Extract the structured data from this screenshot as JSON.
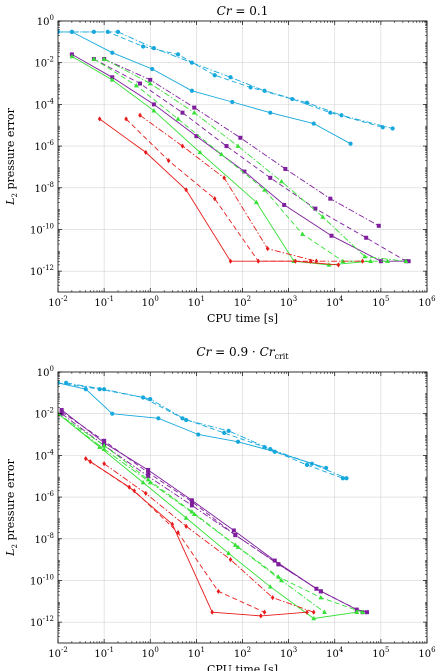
{
  "colors": {
    "blue": "#16a8dc",
    "purple": "#7e1e9c",
    "green": "#33e033",
    "red": "#e81c1c"
  },
  "chart_data": [
    {
      "type": "line",
      "title": "Cr = 0.1",
      "title_parts": {
        "var": "Cr",
        "rest": " = 0.1"
      },
      "xlabel": "CPU time [s]",
      "ylabel": "L2 pressure error",
      "ylabel_parts": {
        "main": "L",
        "sub": "2",
        "rest": " pressure error"
      },
      "x_scale": "log",
      "y_scale": "log",
      "xlim": [
        0.01,
        1000000
      ],
      "ylim": [
        1e-13,
        1
      ],
      "x_ticks": [
        0.01,
        0.1,
        1,
        10,
        100,
        1000,
        10000,
        100000,
        1000000
      ],
      "x_tick_labels": [
        "10^-2",
        "10^-1",
        "10^0",
        "10^1",
        "10^2",
        "10^3",
        "10^4",
        "10^5",
        "10^6"
      ],
      "y_ticks": [
        1e-12,
        1e-10,
        1e-08,
        1e-06,
        0.0001,
        0.01,
        1
      ],
      "y_tick_labels": [
        "10^-12",
        "10^-10",
        "10^-8",
        "10^-6",
        "10^-4",
        "10^-2",
        "10^0"
      ],
      "grid": true,
      "series": [
        {
          "color": "blue",
          "dash": "solid",
          "marker": "circle",
          "x": [
            0.01,
            0.02,
            0.15,
            1.1,
            8,
            60,
            400,
            3500,
            22000
          ],
          "y": [
            0.3,
            0.3,
            0.03,
            0.005,
            0.00045,
            0.00013,
            4e-05,
            1.2e-05,
            1.3e-06
          ]
        },
        {
          "color": "blue",
          "dash": "dashed",
          "marker": "circle",
          "x": [
            0.01,
            0.06,
            0.12,
            0.7,
            4,
            25,
            150,
            1200,
            8000,
            110000
          ],
          "y": [
            0.3,
            0.3,
            0.3,
            0.06,
            0.025,
            0.0025,
            0.00065,
            0.00018,
            4e-05,
            8e-06
          ]
        },
        {
          "color": "blue",
          "dash": "dashdot",
          "marker": "circle",
          "x": [
            0.02,
            0.2,
            1.2,
            8,
            55,
            300,
            2500,
            14000,
            180000
          ],
          "y": [
            0.3,
            0.3,
            0.05,
            0.01,
            0.002,
            0.00045,
            0.00012,
            3e-05,
            7e-06
          ]
        },
        {
          "color": "purple",
          "dash": "solid",
          "marker": "square",
          "x": [
            0.02,
            0.15,
            1.2,
            10,
            110,
            800,
            8500,
            100000,
            400000
          ],
          "y": [
            0.025,
            0.002,
            0.0001,
            3e-06,
            6e-08,
            1.5e-09,
            5e-11,
            3e-12,
            3e-12
          ]
        },
        {
          "color": "purple",
          "dash": "dashed",
          "marker": "square",
          "x": [
            0.06,
            0.6,
            5,
            45,
            400,
            3800,
            48000,
            350000
          ],
          "y": [
            0.015,
            0.001,
            4e-05,
            1e-06,
            3e-08,
            1e-09,
            4e-11,
            3e-12
          ]
        },
        {
          "color": "purple",
          "dash": "dashdot",
          "marker": "square",
          "x": [
            0.1,
            1,
            9,
            90,
            850,
            8000,
            90000
          ],
          "y": [
            0.015,
            0.0015,
            7e-05,
            2.5e-06,
            8e-08,
            3e-09,
            1.5e-10
          ]
        },
        {
          "color": "green",
          "dash": "solid",
          "marker": "triangle",
          "x": [
            0.02,
            0.15,
            1.2,
            12,
            200,
            1300,
            7500,
            60000
          ],
          "y": [
            0.02,
            0.0015,
            5e-05,
            5e-07,
            2e-09,
            3e-12,
            2e-12,
            3e-12
          ]
        },
        {
          "color": "green",
          "dash": "dashed",
          "marker": "triangle",
          "x": [
            0.06,
            0.5,
            4,
            35,
            300,
            2000,
            15000,
            140000
          ],
          "y": [
            0.015,
            0.0008,
            2e-05,
            4e-07,
            8e-09,
            6e-11,
            3e-12,
            3e-12
          ]
        },
        {
          "color": "green",
          "dash": "dashdot",
          "marker": "triangle",
          "x": [
            0.1,
            1,
            9,
            80,
            700,
            5500,
            45000,
            350000
          ],
          "y": [
            0.015,
            0.001,
            4e-05,
            1e-06,
            2e-08,
            4e-10,
            5e-12,
            3e-12
          ]
        },
        {
          "color": "red",
          "dash": "solid",
          "marker": "diamond",
          "x": [
            0.08,
            0.8,
            6,
            55,
            1400,
            12000
          ],
          "y": [
            2e-05,
            5e-07,
            8e-09,
            3e-12,
            3e-12,
            2e-12
          ]
        },
        {
          "color": "red",
          "dash": "dashed",
          "marker": "diamond",
          "x": [
            0.3,
            2.5,
            25,
            220,
            3000
          ],
          "y": [
            2e-05,
            2e-07,
            3e-09,
            3e-12,
            3e-12
          ]
        },
        {
          "color": "red",
          "dash": "dashdot",
          "marker": "diamond",
          "x": [
            0.6,
            5,
            40,
            350,
            4000,
            40000
          ],
          "y": [
            3e-05,
            1e-06,
            3e-08,
            1.2e-11,
            3e-12,
            3e-12
          ]
        }
      ]
    },
    {
      "type": "line",
      "title": "Cr = 0.9 · Cr_crit",
      "title_parts": {
        "var": "Cr",
        "rest": " = 0.9 · ",
        "var2": "Cr",
        "sub": "crit"
      },
      "xlabel": "CPU time [s]",
      "ylabel": "L2 pressure error",
      "ylabel_parts": {
        "main": "L",
        "sub": "2",
        "rest": " pressure error"
      },
      "x_scale": "log",
      "y_scale": "log",
      "xlim": [
        0.01,
        1000000
      ],
      "ylim": [
        1e-13,
        1
      ],
      "x_ticks": [
        0.01,
        0.1,
        1,
        10,
        100,
        1000,
        10000,
        100000,
        1000000
      ],
      "x_tick_labels": [
        "10^-2",
        "10^-1",
        "10^0",
        "10^1",
        "10^2",
        "10^3",
        "10^4",
        "10^5",
        "10^6"
      ],
      "y_ticks": [
        1e-12,
        1e-10,
        1e-08,
        1e-06,
        0.0001,
        0.01,
        1
      ],
      "y_tick_labels": [
        "10^-12",
        "10^-10",
        "10^-8",
        "10^-6",
        "10^-4",
        "10^-2",
        "10^0"
      ],
      "grid": true,
      "series": [
        {
          "color": "blue",
          "dash": "solid",
          "marker": "circle",
          "x": [
            0.01,
            0.04,
            0.15,
            1.5,
            11,
            80,
            500,
            6500
          ],
          "y": [
            0.3,
            0.15,
            0.01,
            0.006,
            0.001,
            0.00045,
            0.00015,
            2.5e-05
          ]
        },
        {
          "color": "blue",
          "dash": "dashed",
          "marker": "circle",
          "x": [
            0.01,
            0.08,
            0.7,
            5,
            40,
            300,
            2500,
            15000
          ],
          "y": [
            0.3,
            0.15,
            0.06,
            0.006,
            0.0012,
            0.00025,
            3.5e-05,
            8e-06
          ]
        },
        {
          "color": "blue",
          "dash": "dashdot",
          "marker": "circle",
          "x": [
            0.015,
            0.1,
            1,
            6,
            50,
            400,
            3200,
            18000
          ],
          "y": [
            0.3,
            0.15,
            0.05,
            0.005,
            0.0015,
            0.0002,
            4e-05,
            8e-06
          ]
        },
        {
          "color": "purple",
          "dash": "solid",
          "marker": "square",
          "x": [
            0.012,
            0.1,
            0.9,
            8,
            65,
            500,
            4000,
            30000,
            50000
          ],
          "y": [
            0.015,
            0.0004,
            2e-05,
            7e-07,
            2.5e-08,
            9e-10,
            4e-11,
            4e-12,
            3e-12
          ]
        },
        {
          "color": "purple",
          "dash": "dashed",
          "marker": "square",
          "x": [
            0.012,
            0.1,
            0.9,
            8,
            70,
            600,
            5000,
            40000
          ],
          "y": [
            0.012,
            0.0005,
            1.5e-05,
            6e-07,
            1.5e-08,
            6e-10,
            3e-11,
            3e-12
          ]
        },
        {
          "color": "purple",
          "dash": "dashdot",
          "marker": "square",
          "x": [
            0.012,
            0.1,
            0.9,
            8,
            70,
            600,
            5000
          ],
          "y": [
            0.01,
            0.0003,
            1e-05,
            4e-07,
            1.5e-08,
            6e-10,
            3e-11
          ]
        },
        {
          "color": "green",
          "dash": "solid",
          "marker": "triangle",
          "x": [
            0.01,
            0.08,
            0.7,
            6,
            50,
            400,
            3500,
            30000
          ],
          "y": [
            0.01,
            0.00025,
            5e-06,
            1e-07,
            2e-09,
            5e-11,
            1.5e-12,
            3e-12
          ]
        },
        {
          "color": "green",
          "dash": "dashed",
          "marker": "triangle",
          "x": [
            0.01,
            0.1,
            0.9,
            8,
            70,
            600,
            5000,
            40000
          ],
          "y": [
            0.01,
            0.0003,
            7e-06,
            2e-07,
            5e-09,
            1.5e-10,
            1.5e-11,
            3e-12
          ]
        },
        {
          "color": "green",
          "dash": "dashdot",
          "marker": "triangle",
          "x": [
            0.01,
            0.1,
            1,
            9,
            80,
            700,
            6000
          ],
          "y": [
            0.01,
            0.0002,
            5e-06,
            1.5e-07,
            4e-09,
            1e-10,
            3e-12
          ]
        },
        {
          "color": "red",
          "dash": "solid",
          "marker": "diamond",
          "x": [
            0.04,
            0.35,
            3,
            22,
            250,
            2500
          ],
          "y": [
            7e-05,
            3e-06,
            5e-08,
            3e-12,
            2e-12,
            3e-12
          ]
        },
        {
          "color": "red",
          "dash": "dashed",
          "marker": "diamond",
          "x": [
            0.05,
            0.45,
            4,
            30,
            300
          ],
          "y": [
            5e-05,
            2e-06,
            2e-08,
            3e-11,
            3e-12
          ]
        },
        {
          "color": "red",
          "dash": "dashdot",
          "marker": "diamond",
          "x": [
            0.1,
            0.8,
            6,
            55,
            450,
            3500
          ],
          "y": [
            4e-05,
            1.5e-06,
            4e-08,
            1e-09,
            1.5e-11,
            3e-12
          ]
        }
      ]
    }
  ]
}
